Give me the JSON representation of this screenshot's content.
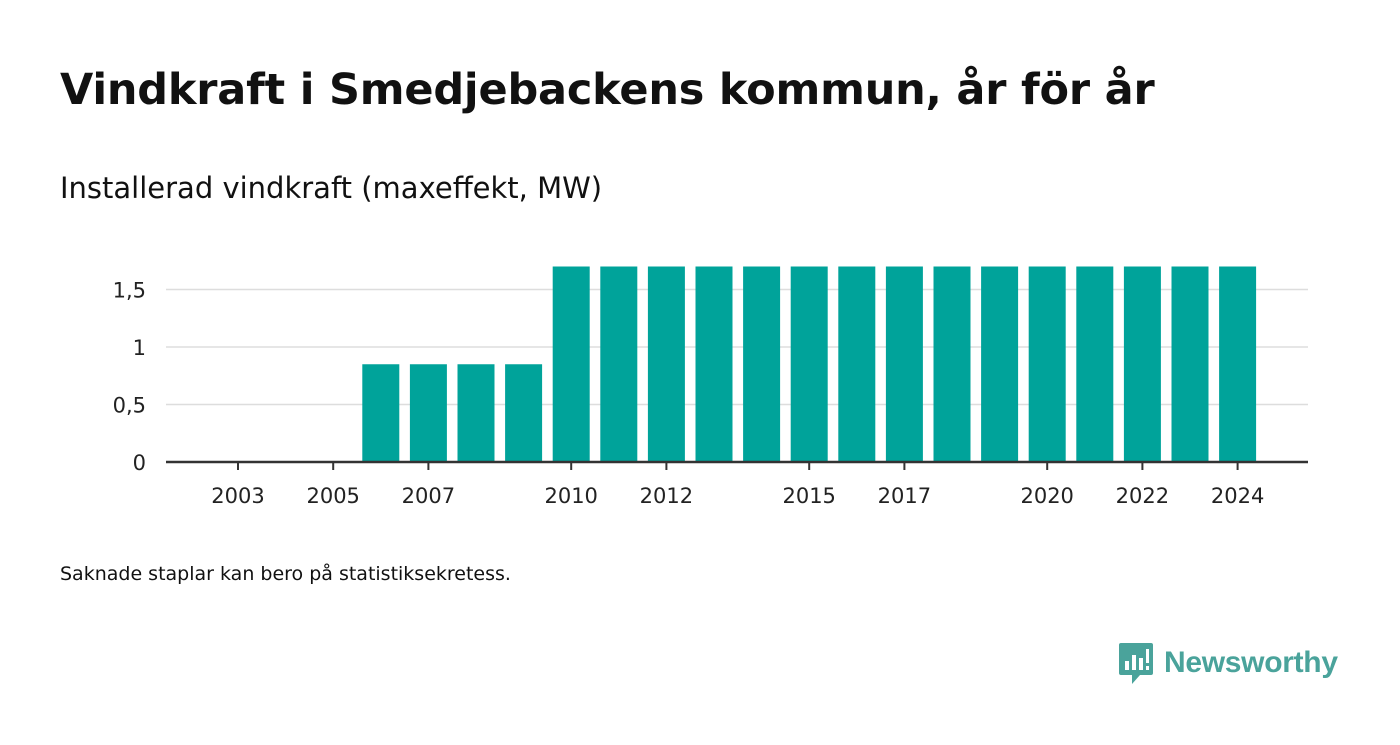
{
  "header": {
    "title": "Vindkraft i Smedjebackens kommun, år för år",
    "subtitle": "Installerad vindkraft (maxeffekt, MW)"
  },
  "footer": {
    "note": "Saknade staplar kan bero på statistiksekretess.",
    "brand": "Newsworthy"
  },
  "colors": {
    "bar": "#00a39a",
    "grid": "#dddddd",
    "axis": "#333333",
    "brand": "#4aa39b"
  },
  "icons": {
    "brand_logo": "newsworthy-logo-icon"
  },
  "chart_data": {
    "type": "bar",
    "categories": [
      "2003",
      "2004",
      "2005",
      "2006",
      "2007",
      "2008",
      "2009",
      "2010",
      "2011",
      "2012",
      "2013",
      "2014",
      "2015",
      "2016",
      "2017",
      "2018",
      "2019",
      "2020",
      "2021",
      "2022",
      "2023",
      "2024"
    ],
    "values": [
      null,
      null,
      null,
      0.85,
      0.85,
      0.85,
      0.85,
      1.7,
      1.7,
      1.7,
      1.7,
      1.7,
      1.7,
      1.7,
      1.7,
      1.7,
      1.7,
      1.7,
      1.7,
      1.7,
      1.7,
      1.7
    ],
    "shown_x_ticks": [
      "2003",
      "2005",
      "2007",
      "2010",
      "2012",
      "2015",
      "2017",
      "2020",
      "2022",
      "2024"
    ],
    "y_ticks": [
      0,
      0.5,
      1,
      1.5
    ],
    "y_tick_labels": [
      "0",
      "0,5",
      "1",
      "1,5"
    ],
    "ylim": [
      0,
      1.7
    ],
    "grid": true,
    "legend": "none"
  }
}
